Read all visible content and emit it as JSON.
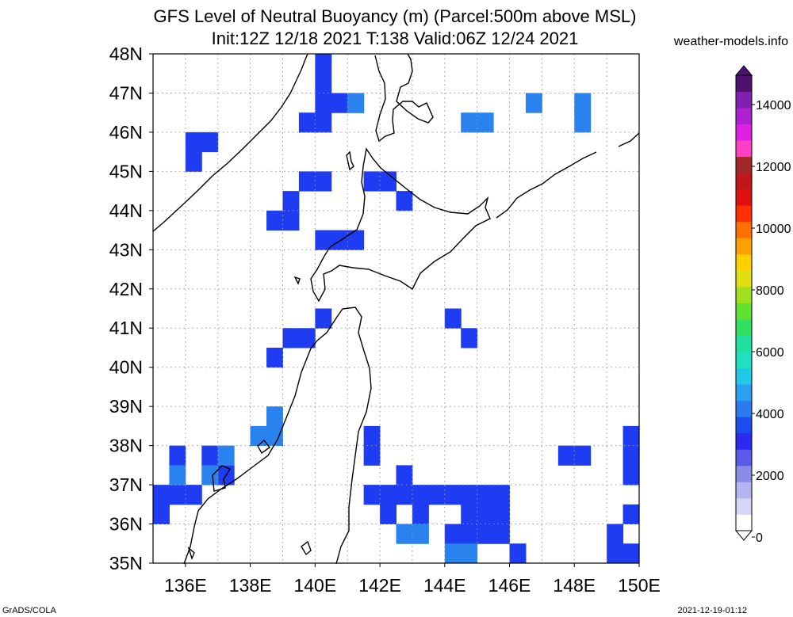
{
  "header": {
    "title_line1": "GFS Level of Neutral Buoyancy (m) (Parcel:500m above MSL)",
    "title_line2": "Init:12Z 12/18 2021 T:138 Valid:06Z 12/24 2021",
    "site": "weather-models.info"
  },
  "footer": {
    "left": "GrADS/COLA",
    "right": "2021-12-19-01:12"
  },
  "map": {
    "lon_labels": [
      "136E",
      "138E",
      "140E",
      "142E",
      "144E",
      "146E",
      "148E",
      "150E"
    ],
    "lat_labels": [
      "35N",
      "36N",
      "37N",
      "38N",
      "39N",
      "40N",
      "41N",
      "42N",
      "43N",
      "44N",
      "45N",
      "46N",
      "47N",
      "48N"
    ],
    "lon_range": [
      135,
      150
    ],
    "lat_range": [
      35,
      48
    ],
    "grid": true
  },
  "colorbar": {
    "labels": [
      "0",
      "2000",
      "4000",
      "6000",
      "8000",
      "10000",
      "12000",
      "14000"
    ],
    "colors": [
      "#ffffff",
      "#d6d6f6",
      "#b4b4f0",
      "#8c8ce8",
      "#5a5ae8",
      "#2a2af0",
      "#1a4cf0",
      "#2a7af0",
      "#2aa0f0",
      "#22c8e8",
      "#20e0c0",
      "#20e0a0",
      "#30e060",
      "#60e030",
      "#a0e020",
      "#e0e010",
      "#ffd000",
      "#ffa000",
      "#ff7000",
      "#ff3000",
      "#e01010",
      "#c01818",
      "#a02828",
      "#ff40c0",
      "#e020e0",
      "#b020d0",
      "#8020b0",
      "#501070"
    ]
  },
  "cells": {
    "blue": [
      [
        136,
        45.5
      ],
      [
        136.5,
        45.5
      ],
      [
        136,
        45
      ],
      [
        140,
        47.5
      ],
      [
        140,
        47
      ],
      [
        140.5,
        46.5
      ],
      [
        140,
        46.5
      ],
      [
        141,
        46.5
      ],
      [
        140,
        46
      ],
      [
        139.5,
        46
      ],
      [
        139.5,
        44.5
      ],
      [
        140,
        44.5
      ],
      [
        139,
        44
      ],
      [
        138.5,
        43.5
      ],
      [
        139,
        43.5
      ],
      [
        140,
        43
      ],
      [
        140.5,
        43
      ],
      [
        141,
        43
      ],
      [
        141.5,
        44.5
      ],
      [
        142,
        44.5
      ],
      [
        142.5,
        44
      ],
      [
        139.5,
        40.5
      ],
      [
        139,
        40.5
      ],
      [
        140,
        41
      ],
      [
        138.5,
        40
      ],
      [
        144,
        41
      ],
      [
        144.5,
        40.5
      ],
      [
        141.5,
        38
      ],
      [
        141.5,
        37.5
      ],
      [
        142.5,
        37
      ],
      [
        142.5,
        36.5
      ],
      [
        142,
        36.5
      ],
      [
        143,
        36.5
      ],
      [
        143.5,
        36.5
      ],
      [
        144,
        36.5
      ],
      [
        144.5,
        36.5
      ],
      [
        145,
        36.5
      ],
      [
        145.5,
        36.5
      ],
      [
        144.5,
        36
      ],
      [
        145,
        36
      ],
      [
        145.5,
        36
      ],
      [
        142,
        36
      ],
      [
        143,
        36
      ],
      [
        144.5,
        35.5
      ],
      [
        144,
        35.5
      ],
      [
        145,
        35.5
      ],
      [
        145.5,
        35.5
      ],
      [
        147.5,
        37.5
      ],
      [
        148,
        37.5
      ],
      [
        149.5,
        38
      ],
      [
        149.5,
        37.5
      ],
      [
        149.5,
        37
      ],
      [
        149.5,
        36
      ],
      [
        149,
        35.5
      ],
      [
        149.5,
        35
      ],
      [
        149,
        35
      ],
      [
        146,
        35
      ],
      [
        141.5,
        36.5
      ],
      [
        135.5,
        37.5
      ],
      [
        136.5,
        37.5
      ],
      [
        137,
        37
      ],
      [
        135,
        36.5
      ],
      [
        135.5,
        36.5
      ],
      [
        136,
        36.5
      ],
      [
        135,
        36
      ]
    ],
    "light": [
      [
        141,
        46.5
      ],
      [
        144.5,
        46
      ],
      [
        145,
        46
      ],
      [
        146.5,
        46.5
      ],
      [
        148,
        46.5
      ],
      [
        148,
        46
      ],
      [
        138,
        38
      ],
      [
        138.5,
        38
      ],
      [
        138.5,
        38.5
      ],
      [
        143,
        35.5
      ],
      [
        142.5,
        35.5
      ],
      [
        144.5,
        35
      ],
      [
        144,
        35
      ],
      [
        135.5,
        37
      ],
      [
        136.5,
        37
      ],
      [
        137,
        37.5
      ]
    ]
  }
}
